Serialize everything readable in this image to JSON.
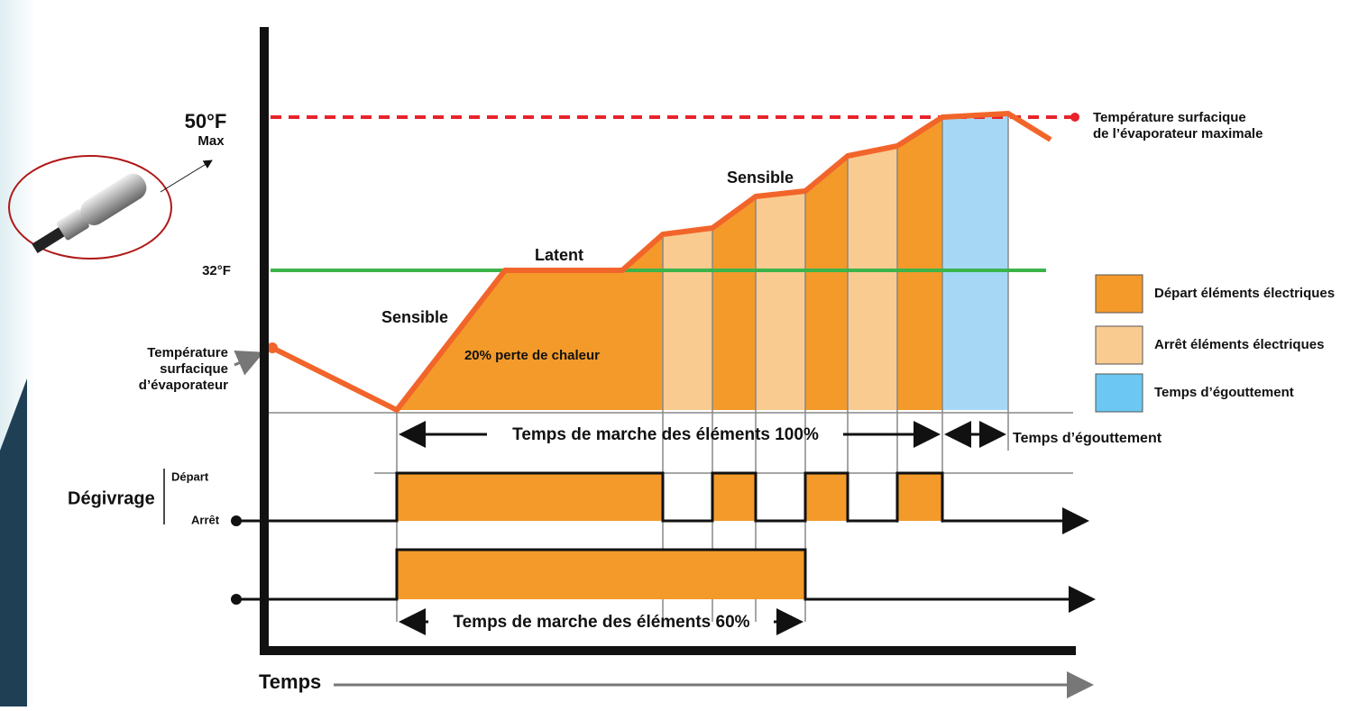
{
  "diagram": {
    "y_labels": {
      "max_temp": "50°F",
      "max": "Max",
      "freezing": "32°F",
      "surface_temp": [
        "Température",
        "surfacique",
        "d’évaporateur"
      ]
    },
    "phases": {
      "sensible_1": "Sensible",
      "latent": "Latent",
      "sensible_2": "Sensible",
      "heat_loss": "20% perte de chaleur"
    },
    "max_line_label": [
      "Température surfacique",
      "de l’évaporateur maximale"
    ],
    "legend": [
      "Départ éléments électriques",
      "Arrêt éléments électriques",
      "Temps d’égouttement"
    ],
    "runtime_100": "Temps de marche des éléments  100%",
    "drip_time": "Temps d’égouttement",
    "defrost": {
      "label": "Dégivrage",
      "on": "Départ",
      "off": "Arrêt"
    },
    "runtime_60": "Temps de marche des éléments  60%",
    "x_axis": "Temps"
  }
}
